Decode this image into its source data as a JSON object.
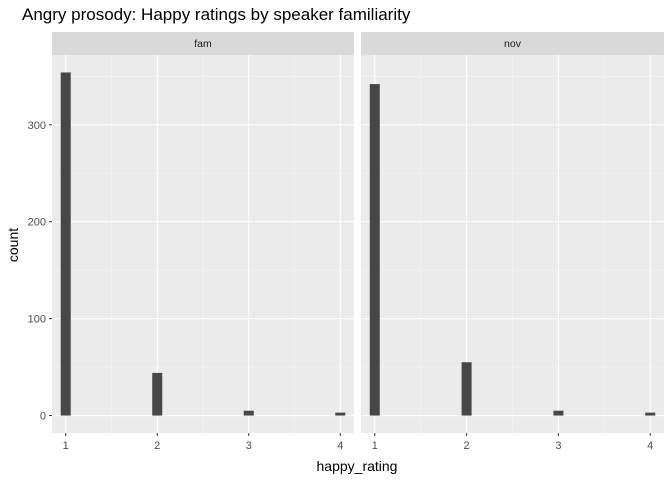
{
  "chart_data": {
    "type": "bar",
    "title": "Angry prosody: Happy ratings by speaker familiarity",
    "xlabel": "happy_rating",
    "ylabel": "count",
    "x_ticks": [
      "1",
      "2",
      "3",
      "4"
    ],
    "y_ticks": [
      "0",
      "100",
      "200",
      "300"
    ],
    "xlim": [
      0.85,
      4.15
    ],
    "ylim": [
      -18,
      372
    ],
    "grid": true,
    "bar_color": "#474747",
    "panel_bg": "#ebebeb",
    "strip_bg": "#d9d9d9",
    "facets": [
      {
        "label": "fam",
        "bars": [
          {
            "x": 1,
            "count": 354
          },
          {
            "x": 2,
            "count": 44
          },
          {
            "x": 3,
            "count": 5
          },
          {
            "x": 4,
            "count": 3
          }
        ]
      },
      {
        "label": "nov",
        "bars": [
          {
            "x": 1,
            "count": 342
          },
          {
            "x": 2,
            "count": 55
          },
          {
            "x": 3,
            "count": 5
          },
          {
            "x": 4,
            "count": 3
          }
        ]
      }
    ]
  }
}
